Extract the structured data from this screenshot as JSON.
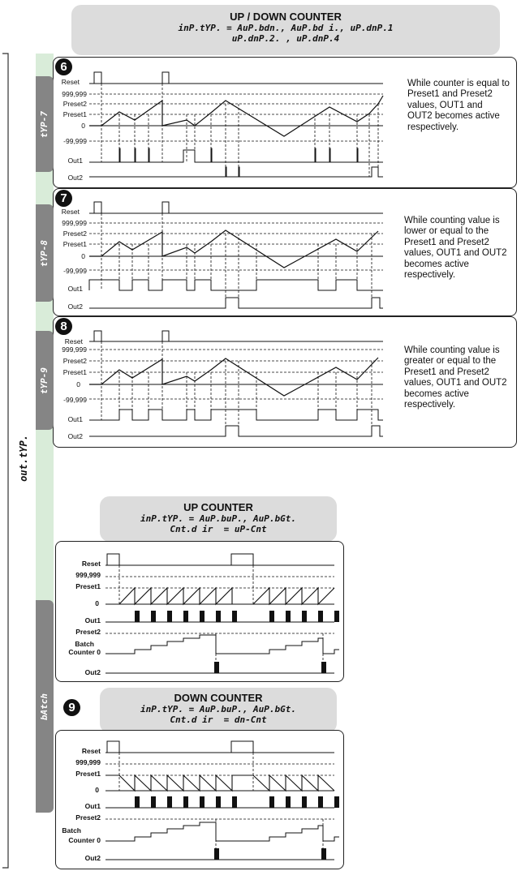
{
  "top_header": {
    "title": "UP / DOWN COUNTER",
    "line1": "inP.tYP. = AuP.bdn., AuP.bd i., uP.dnP.1",
    "line2": "uP.dnP.2. , uP.dnP.4"
  },
  "side_label": "out.tYP.",
  "sections": [
    {
      "tab": "tYP-7",
      "number": "6",
      "description": "While counter is equal to Preset1 and Preset2 values, OUT1 and OUT2 becomes active respectively."
    },
    {
      "tab": "tYP-8",
      "number": "7",
      "description": "While counting value is lower or equal to the Preset1 and Preset2 values, OUT1 and OUT2 becomes active respectively."
    },
    {
      "tab": "tYP-9",
      "number": "8",
      "description": "While counting value is greater or equal to the Preset1 and Preset2 values, OUT1 and OUT2 becomes active respectively."
    }
  ],
  "signal_labels": {
    "reset": "Reset",
    "max": "999,999",
    "preset2": "Preset2",
    "preset1": "Preset1",
    "zero": "0",
    "min": "-99,999",
    "out1": "Out1",
    "out2": "Out2",
    "batch": "Batch",
    "counter0": "Counter  0"
  },
  "up_header": {
    "title": "UP COUNTER",
    "line1": "inP.tYP. = AuP.buP., AuP.bGt.",
    "line2": "Cnt.d ir  = uP-Cnt"
  },
  "down_header": {
    "title": "DOWN COUNTER",
    "line1": "inP.tYP. = AuP.buP., AuP.bGt.",
    "line2": "Cnt.d ir  = dn-Cnt"
  },
  "batch_tab": "bAtch",
  "batch_number": "9"
}
